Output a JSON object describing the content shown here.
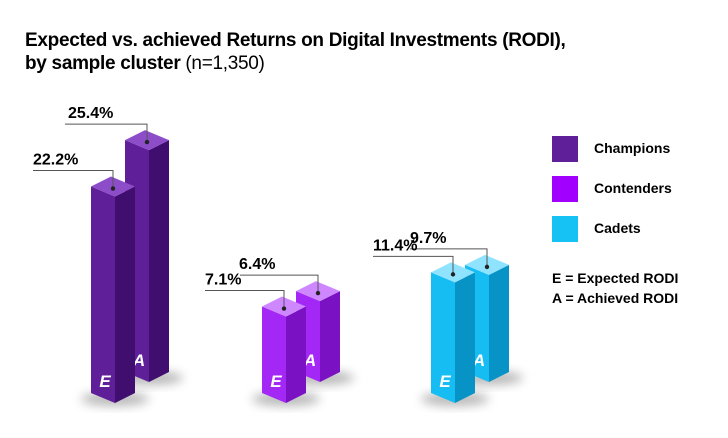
{
  "chart_data": {
    "type": "bar",
    "title_bold": "Expected vs. achieved Returns on Digital Investments (RODI),",
    "subtitle_bold": "by sample cluster",
    "subtitle_light": "(n=1,350)",
    "categories": [
      "Champions",
      "Contenders",
      "Cadets"
    ],
    "bar_letters": [
      "E",
      "A"
    ],
    "series": [
      {
        "name": "Expected RODI",
        "letter": "E",
        "values": [
          22.2,
          7.1,
          11.4
        ],
        "labels": [
          "22.2%",
          "7.1%",
          "11.4%"
        ]
      },
      {
        "name": "Achieved RODI",
        "letter": "A",
        "values": [
          25.4,
          6.4,
          9.7
        ],
        "labels": [
          "25.4%",
          "6.4%",
          "9.7%"
        ]
      }
    ],
    "colors": {
      "Champions": {
        "front": "#5e1f98",
        "side": "#3f0e6e",
        "top": "#8d4dc9"
      },
      "Contenders": {
        "front": "#a327f5",
        "side": "#7a12c4",
        "top": "#cf87ff"
      },
      "Cadets": {
        "front": "#15bdf2",
        "side": "#0893c6",
        "top": "#8fe3ff"
      }
    },
    "legend": {
      "position": "right",
      "items": [
        {
          "label": "Champions",
          "color": "#5e1f98"
        },
        {
          "label": "Contenders",
          "color": "#a100ff"
        },
        {
          "label": "Cadets",
          "color": "#16c1f3"
        }
      ]
    },
    "notes": [
      "E = Expected RODI",
      "A = Achieved RODI"
    ],
    "grid": false
  }
}
